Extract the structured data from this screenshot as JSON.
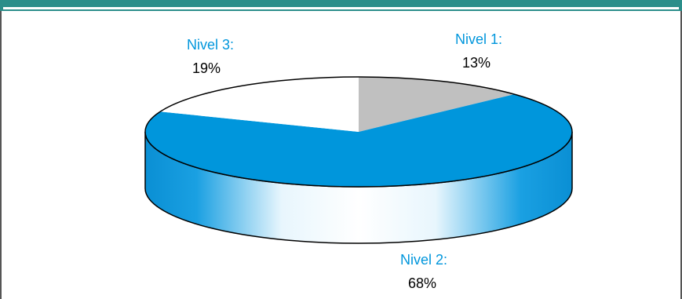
{
  "chart_data": {
    "type": "pie",
    "title": "",
    "slices": [
      {
        "label": "Nivel 1:",
        "value_label": "13%",
        "value": 13,
        "color": "#c0c0c0"
      },
      {
        "label": "Nivel 2:",
        "value_label": "68%",
        "value": 68,
        "color": "#0096dc"
      },
      {
        "label": "Nivel 3:",
        "value_label": "19%",
        "value": 19,
        "color": "#ffffff"
      }
    ],
    "label_color": "#0096dc",
    "value_color": "#000000",
    "style": "3d"
  }
}
